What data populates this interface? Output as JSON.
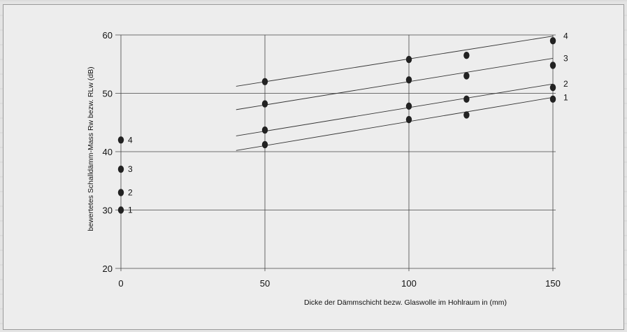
{
  "chart_data": {
    "type": "scatter",
    "xlabel": "Dicke der Dämmschicht  bezw. Glaswolle im Hohlraum in (mm)",
    "ylabel": "bewertetes Schalldämm-Mass Rw bezw. RLw (dB)",
    "xlim": [
      0,
      150
    ],
    "ylim": [
      20,
      60
    ],
    "xticks": [
      0,
      50,
      100,
      150
    ],
    "yticks": [
      20,
      30,
      40,
      50,
      60
    ],
    "grid": true,
    "series": [
      {
        "name": "1",
        "points": [
          [
            0,
            30
          ],
          [
            50,
            41.2
          ],
          [
            100,
            45.5
          ],
          [
            120,
            46.3
          ],
          [
            150,
            49.0
          ]
        ],
        "line": [
          [
            40,
            40.2
          ],
          [
            150,
            49.3
          ]
        ]
      },
      {
        "name": "2",
        "points": [
          [
            0,
            33
          ],
          [
            50,
            43.7
          ],
          [
            100,
            47.8
          ],
          [
            120,
            49.0
          ],
          [
            150,
            51.0
          ]
        ],
        "line": [
          [
            40,
            42.7
          ],
          [
            150,
            51.6
          ]
        ]
      },
      {
        "name": "3",
        "points": [
          [
            0,
            37
          ],
          [
            50,
            48.2
          ],
          [
            100,
            52.3
          ],
          [
            120,
            53.0
          ],
          [
            150,
            54.8
          ]
        ],
        "line": [
          [
            40,
            47.2
          ],
          [
            150,
            56.0
          ]
        ]
      },
      {
        "name": "4",
        "points": [
          [
            0,
            42
          ],
          [
            50,
            52.0
          ],
          [
            100,
            55.8
          ],
          [
            120,
            56.5
          ],
          [
            150,
            59.0
          ]
        ],
        "line": [
          [
            40,
            51.2
          ],
          [
            150,
            59.8
          ]
        ]
      }
    ],
    "colors": {
      "marker": "#222222",
      "grid": "#444444",
      "line": "#333333"
    }
  }
}
